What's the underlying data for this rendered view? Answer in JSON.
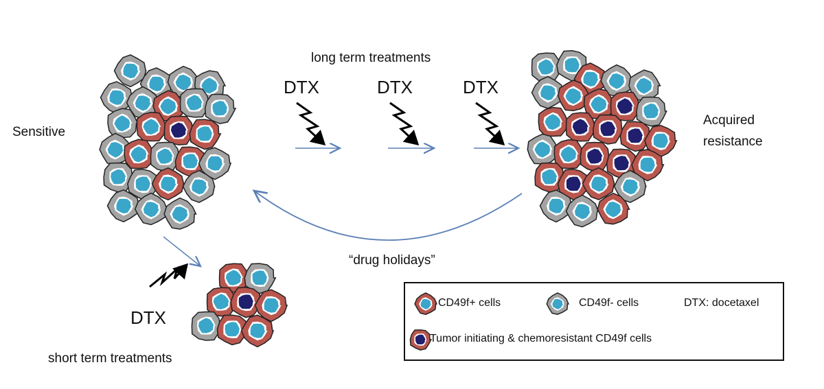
{
  "labels": {
    "sensitive": "Sensitive",
    "acquired_resistance": [
      "Acquired",
      "resistance"
    ],
    "long_term": "long term treatments",
    "short_term": "short term treatments",
    "drug_holidays": "“drug holidays”",
    "dtx": "DTX"
  },
  "legend": {
    "cd49f_pos": "CD49f+ cells",
    "cd49f_neg": "CD49f- cells",
    "dtx_def": "DTX: docetaxel",
    "tic": "Tumor initiating & chemoresistant CD49f cells"
  },
  "colors": {
    "cd49f_pos_ring": "#b9574f",
    "cd49f_neg_ring": "#a3a3a3",
    "nucleus": "#3aa6c9",
    "tic_nucleus": "#1f1f6e",
    "arrow": "#5b80b5"
  }
}
